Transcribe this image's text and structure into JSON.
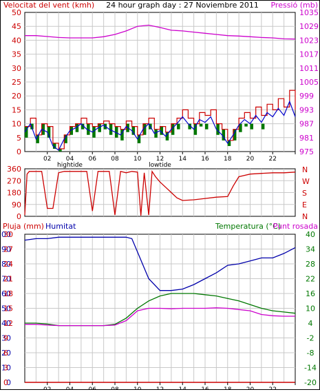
{
  "header": {
    "wind_speed_label": "Velocitat del vent (kmh)",
    "title": "24 hour graph day : 27 Noviembre 2011",
    "pressure_label": "Pressió (mb)"
  },
  "middle": {
    "compass_labels": [
      "N",
      "W",
      "S",
      "E",
      "N"
    ]
  },
  "bottom": {
    "rain_label": "Pluja (mm)",
    "humidity_label": "Humitat",
    "temperature_label": "Temperatura (°C)",
    "dewpoint_label": "Punt rosada"
  },
  "colors": {
    "grid": "#c8c8c8",
    "wind_avg": "#cc0000",
    "wind_gust_band": "#007700",
    "wind_mean_line": "#0000cc",
    "pressure": "#cc00cc",
    "direction": "#cc0000",
    "humidity": "#0000aa",
    "temperature": "#007700",
    "dewpoint": "#cc00cc",
    "rain": "#cc0000"
  },
  "chart_data": [
    {
      "type": "line",
      "title": "24 hour graph day : 27 Noviembre 2011",
      "xlabel": "",
      "x_ticks": [
        "02",
        "04",
        "06",
        "08",
        "10",
        "12",
        "14",
        "16",
        "18",
        "20",
        "22",
        ""
      ],
      "x_annotations": [
        {
          "at": "04",
          "text": "hightide"
        },
        {
          "at": "12",
          "text": "lowtide"
        }
      ],
      "y_left": {
        "label": "Velocitat del vent (kmh)",
        "range": [
          0,
          50
        ],
        "ticks": [
          "0",
          "5",
          "10",
          "15",
          "20",
          "25",
          "30",
          "35",
          "40",
          "45",
          "50"
        ]
      },
      "y_right": {
        "label": "Pressió (mb)",
        "range": [
          975,
          1035
        ],
        "ticks": [
          "975",
          "981",
          "987",
          "993",
          "999",
          "1005",
          "1011",
          "1017",
          "1023",
          "1029",
          "1035"
        ]
      },
      "grid": true,
      "series": [
        {
          "axis": "left",
          "x": [
            0,
            0.5,
            1,
            1.5,
            2,
            2.5,
            3,
            3.5,
            4,
            4.5,
            5,
            5.5,
            6,
            6.5,
            7,
            7.5,
            8,
            8.5,
            9,
            9.5,
            10,
            10.5,
            11,
            11.5,
            12,
            12.5,
            13,
            13.5,
            14,
            14.5,
            15,
            15.5,
            16,
            16.5,
            17,
            17.5,
            18,
            18.5,
            19,
            19.5,
            20,
            20.5,
            21,
            21.5,
            22,
            22.5,
            23,
            23.5,
            24
          ],
          "y": [
            9,
            12,
            6,
            10,
            9,
            3,
            1,
            6,
            9,
            10,
            12,
            10,
            9,
            10,
            11,
            10,
            9,
            8,
            11,
            9,
            6,
            10,
            12,
            8,
            9,
            7,
            10,
            12,
            15,
            12,
            10,
            14,
            13,
            15,
            10,
            8,
            4,
            8,
            12,
            14,
            12,
            16,
            13,
            17,
            15,
            19,
            16,
            22,
            15
          ]
        },
        {
          "axis": "left",
          "x": [
            0,
            0.5,
            1,
            1.5,
            2,
            2.5,
            3,
            3.5,
            4,
            4.5,
            5,
            5.5,
            6,
            6.5,
            7,
            7.5,
            8,
            8.5,
            9,
            9.5,
            10,
            10.5,
            11,
            11.5,
            12,
            12.5,
            13,
            13.5,
            14,
            14.5,
            15,
            15.5,
            16,
            16.5,
            17,
            17.5,
            18,
            18.5,
            19,
            19.5,
            20,
            20.5,
            21,
            21.5,
            22,
            22.5,
            23,
            23.5,
            24
          ],
          "y": [
            5,
            8,
            3,
            6,
            5,
            1,
            0,
            3,
            6,
            7,
            8,
            6,
            5,
            7,
            8,
            6,
            5,
            4,
            7,
            6,
            3,
            6,
            8,
            5,
            6,
            4,
            6,
            8,
            10,
            8,
            6,
            9,
            8,
            10,
            6,
            4,
            2,
            4,
            7,
            9,
            8,
            10,
            8,
            11,
            10,
            12,
            10,
            14,
            10
          ]
        },
        {
          "axis": "right",
          "x": [
            0,
            1,
            2,
            3,
            4,
            5,
            6,
            7,
            8,
            9,
            10,
            11,
            12,
            13,
            14,
            15,
            16,
            17,
            18,
            19,
            20,
            21,
            22,
            23,
            24
          ],
          "y": [
            1025,
            1025,
            1024.6,
            1024.2,
            1024,
            1024,
            1024,
            1024.5,
            1025.5,
            1027,
            1029,
            1029.5,
            1028.5,
            1027.3,
            1027,
            1026.5,
            1026,
            1025.5,
            1025,
            1024.8,
            1024.5,
            1024.2,
            1024,
            1023.6,
            1023.5
          ]
        }
      ]
    },
    {
      "type": "line",
      "title": "",
      "x_ticks": [
        "02",
        "04",
        "06",
        "08",
        "10",
        "12",
        "14",
        "16",
        "18",
        "20",
        "22",
        ""
      ],
      "y_left": {
        "label": "",
        "range": [
          0,
          360
        ],
        "ticks": [
          "0",
          "90",
          "180",
          "270",
          "360"
        ]
      },
      "y_right": {
        "label": "",
        "ticks": [
          "N",
          "E",
          "S",
          "W",
          "N"
        ]
      },
      "grid": true,
      "series": [
        {
          "x": [
            0,
            0.2,
            0.4,
            1,
            1.5,
            2,
            2.5,
            3,
            3.5,
            4,
            5,
            5.5,
            6,
            6.5,
            7,
            7.5,
            8,
            8.5,
            9,
            9.5,
            10,
            10.3,
            10.6,
            11,
            11.3,
            11.6,
            12,
            12.5,
            13,
            13.5,
            14,
            15,
            16,
            17,
            18,
            18.5,
            19,
            20,
            21,
            22,
            23,
            24
          ],
          "y": [
            10,
            320,
            340,
            340,
            340,
            60,
            60,
            330,
            340,
            340,
            340,
            340,
            40,
            340,
            340,
            340,
            10,
            340,
            330,
            340,
            335,
            5,
            330,
            10,
            340,
            300,
            260,
            220,
            180,
            140,
            120,
            125,
            135,
            145,
            150,
            230,
            300,
            320,
            325,
            330,
            330,
            335
          ]
        }
      ]
    },
    {
      "type": "line",
      "title": "",
      "x_ticks": [
        "02",
        "04",
        "06",
        "08",
        "10",
        "12",
        "14",
        "16",
        "18",
        "20",
        "22",
        ""
      ],
      "x_annotations": [
        {
          "at": "04",
          "text": "hightide"
        },
        {
          "at": "12",
          "text": "lowtide"
        }
      ],
      "y_left": {
        "label": "Pluja (mm) / Humitat",
        "range": [
          0,
          100
        ],
        "ticks": [
          "0",
          "10",
          "20",
          "30",
          "40",
          "50",
          "60",
          "70",
          "80",
          "90",
          "100"
        ],
        "rain_ticks": [
          "0",
          "3",
          "6",
          "9",
          "12",
          "15",
          "18",
          "21",
          "24",
          "27",
          "30"
        ]
      },
      "y_right": {
        "label": "Temperatura (°C) / Punt rosada",
        "range": [
          -20,
          40
        ],
        "ticks": [
          "-20",
          "-14",
          "-8",
          "-2",
          "4",
          "10",
          "16",
          "22",
          "28",
          "34",
          "40"
        ]
      },
      "grid": true,
      "series": [
        {
          "name": "Humitat",
          "axis": "left",
          "x": [
            0,
            1,
            2,
            3,
            4,
            5,
            6,
            7,
            8,
            9,
            9.5,
            10,
            11,
            12,
            13,
            14,
            15,
            16,
            17,
            18,
            19,
            20,
            21,
            22,
            23,
            24
          ],
          "y": [
            96,
            97,
            97,
            98,
            98,
            98,
            98,
            98,
            98,
            98,
            97,
            88,
            70,
            62,
            62,
            63,
            66,
            70,
            74,
            79,
            80,
            82,
            84,
            84,
            87,
            91
          ]
        },
        {
          "name": "Temperatura (°C)",
          "axis": "right",
          "x": [
            0,
            1,
            2,
            3,
            4,
            5,
            6,
            7,
            8,
            9,
            10,
            11,
            12,
            13,
            14,
            15,
            16,
            17,
            18,
            19,
            20,
            21,
            22,
            23,
            24
          ],
          "y": [
            4,
            4,
            3.6,
            3,
            3,
            3,
            3,
            3,
            3.5,
            6,
            10,
            13,
            15,
            16,
            16,
            16,
            15.5,
            15,
            14,
            13,
            11.5,
            10,
            9,
            8.5,
            8
          ]
        },
        {
          "name": "Punt rosada",
          "axis": "right",
          "x": [
            0,
            1,
            2,
            3,
            4,
            5,
            6,
            7,
            8,
            9,
            10,
            11,
            12,
            13,
            14,
            15,
            16,
            17,
            18,
            19,
            20,
            21,
            22,
            23,
            24
          ],
          "y": [
            3.5,
            3.5,
            3.2,
            3,
            3,
            3,
            3,
            3,
            3.2,
            5,
            9,
            10,
            10,
            9.8,
            10,
            10,
            10,
            10.2,
            10,
            9.5,
            9,
            7.5,
            7,
            6.8,
            6.8
          ]
        },
        {
          "name": "Pluja (mm)",
          "axis": "left",
          "x": [
            0,
            24
          ],
          "y": [
            0,
            0
          ]
        }
      ]
    }
  ]
}
